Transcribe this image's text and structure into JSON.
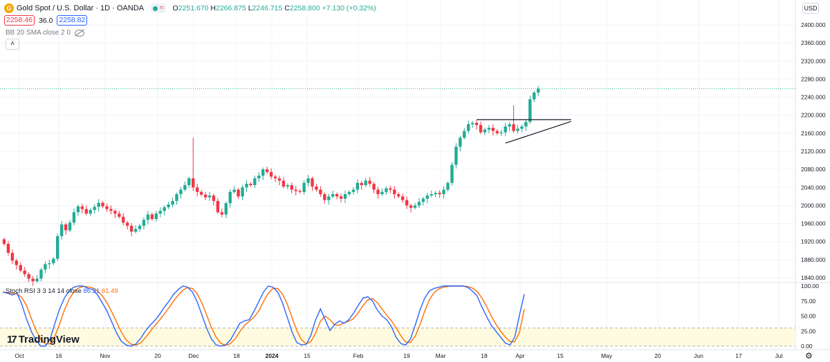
{
  "header": {
    "title": "Gold Spot / U.S. Dollar · 1D · OANDA",
    "ohlc": {
      "o_label": "O",
      "o": "2251.670",
      "h_label": "H",
      "h": "2266.875",
      "l_label": "L",
      "l": "2246.715",
      "c_label": "C",
      "c": "2258.800",
      "change": "+7.130 (+0.32%)"
    },
    "bid": "2258.46",
    "spread": "36.0",
    "ask": "2258.82",
    "indicator": "BB 20 SMA close 2 0",
    "currency": "USD",
    "logo_icon": "gold-coin-icon",
    "collapse_icon": "chevron-up-icon"
  },
  "stoch": {
    "label": "Stoch RSI 3 3 14 14 close",
    "k": "86.31",
    "d": "61.49",
    "levels": [
      80,
      20
    ],
    "axis_labels": [
      "100.00",
      "75.00",
      "50.00",
      "25.00",
      "0.00"
    ]
  },
  "brand": {
    "mark": "17",
    "name": "TradingView"
  },
  "colors": {
    "up": "#22ab94",
    "down": "#f23645",
    "k_line": "#2962ff",
    "d_line": "#ff6d00",
    "band": "#fffbe0"
  },
  "chart_data": {
    "type": "candlestick",
    "x_axis_labels": [
      "Oct",
      "16",
      "Nov",
      "20",
      "Dec",
      "18",
      "2024",
      "15",
      "Feb",
      "19",
      "Mar",
      "18",
      "Apr",
      "15",
      "May",
      "20",
      "Jun",
      "17",
      "Jul"
    ],
    "y_axis_labels": [
      "2400.000",
      "2360.000",
      "2320.000",
      "2280.000",
      "2240.000",
      "2200.000",
      "2160.000",
      "2120.000",
      "2080.000",
      "2040.000",
      "2000.000",
      "1960.000",
      "1920.000",
      "1880.000",
      "1840.000"
    ],
    "ylim": [
      1830,
      2420
    ],
    "last_price": 2258.8,
    "closes": [
      1915,
      1895,
      1878,
      1868,
      1856,
      1848,
      1838,
      1832,
      1838,
      1858,
      1870,
      1872,
      1882,
      1932,
      1958,
      1945,
      1962,
      1985,
      1998,
      1992,
      1982,
      1990,
      1997,
      2006,
      1998,
      1992,
      1988,
      1982,
      1975,
      1962,
      1955,
      1942,
      1948,
      1955,
      1968,
      1980,
      1970,
      1982,
      1988,
      1996,
      2002,
      2010,
      2025,
      2035,
      2045,
      2060,
      2040,
      2030,
      2024,
      2018,
      2022,
      2010,
      1985,
      1980,
      2005,
      2030,
      2035,
      2020,
      2040,
      2048,
      2045,
      2060,
      2066,
      2080,
      2074,
      2064,
      2060,
      2055,
      2042,
      2045,
      2035,
      2032,
      2030,
      2050,
      2060,
      2042,
      2035,
      2025,
      2012,
      2020,
      2025,
      2020,
      2015,
      2025,
      2030,
      2035,
      2050,
      2045,
      2055,
      2048,
      2035,
      2025,
      2030,
      2038,
      2035,
      2025,
      2020,
      2012,
      2000,
      1995,
      2000,
      2008,
      2015,
      2022,
      2025,
      2028,
      2025,
      2035,
      2050,
      2090,
      2130,
      2150,
      2165,
      2180,
      2183,
      2178,
      2162,
      2168,
      2172,
      2165,
      2160,
      2162,
      2175,
      2180,
      2165,
      2170,
      2175,
      2185,
      2235,
      2250,
      2258.8
    ],
    "annotations": {
      "resistance": {
        "price": 2190,
        "from_index": 115,
        "to_index": 138
      },
      "support": {
        "from_index": 122,
        "from_price": 2138,
        "to_index": 138,
        "to_price": 2186
      }
    },
    "stoch_k": [
      90,
      88,
      85,
      88,
      70,
      45,
      25,
      10,
      0,
      0,
      12,
      38,
      62,
      80,
      92,
      98,
      100,
      100,
      96,
      94,
      85,
      72,
      58,
      40,
      22,
      8,
      2,
      0,
      3,
      12,
      24,
      34,
      42,
      52,
      64,
      74,
      86,
      94,
      100,
      98,
      90,
      74,
      52,
      30,
      12,
      2,
      0,
      2,
      10,
      24,
      38,
      42,
      44,
      58,
      74,
      90,
      100,
      98,
      90,
      72,
      48,
      24,
      6,
      2,
      3,
      18,
      44,
      62,
      44,
      26,
      36,
      42,
      38,
      44,
      55,
      68,
      80,
      82,
      75,
      60,
      50,
      44,
      32,
      14,
      4,
      2,
      12,
      35,
      60,
      80,
      92,
      96,
      98,
      100,
      100,
      100,
      100,
      100,
      98,
      92,
      84,
      66,
      50,
      35,
      25,
      15,
      5,
      2,
      15,
      52,
      86.31
    ]
  }
}
